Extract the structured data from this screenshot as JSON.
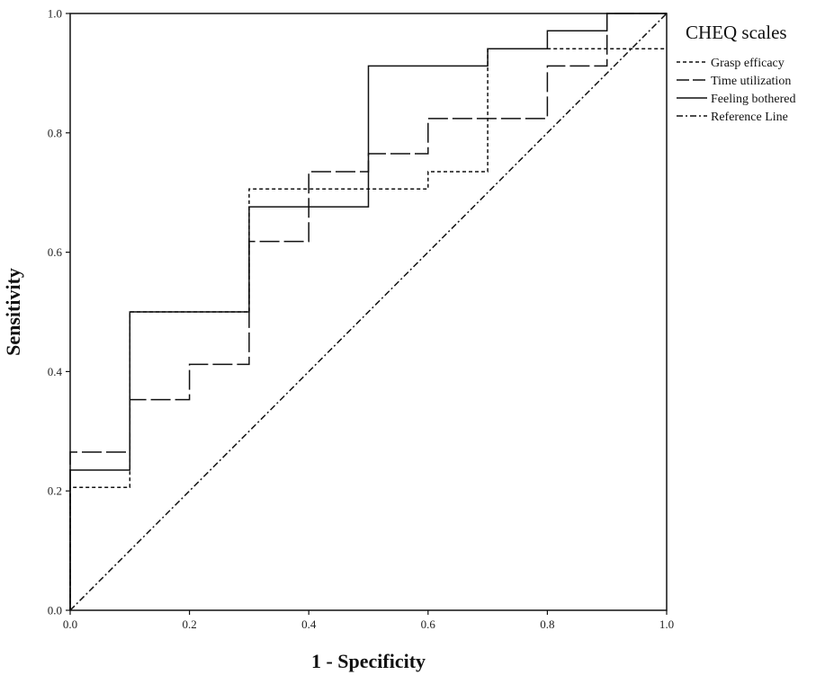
{
  "chart_data": {
    "type": "line",
    "title": "",
    "xlabel": "1 - Specificity",
    "ylabel": "Sensitivity",
    "xlim": [
      0,
      1
    ],
    "ylim": [
      0,
      1
    ],
    "x_ticks": [
      "0.0",
      "0.2",
      "0.4",
      "0.6",
      "0.8",
      "1.0"
    ],
    "y_ticks": [
      "0.0",
      "0.2",
      "0.4",
      "0.6",
      "0.8",
      "1.0"
    ],
    "grid": false,
    "legend": {
      "title": "CHEQ scales",
      "placement": "right-top"
    },
    "series": [
      {
        "name": "Grasp efficacy",
        "style": "short-dash",
        "x": [
          0,
          0,
          0.1,
          0.1,
          0.3,
          0.3,
          0.6,
          0.6,
          0.7,
          0.7,
          0.8,
          0.8,
          0.9,
          0.9,
          1.0
        ],
        "y": [
          0,
          0.206,
          0.206,
          0.5,
          0.5,
          0.706,
          0.706,
          0.735,
          0.735,
          0.941,
          0.941,
          0.941,
          0.941,
          0.941,
          0.941
        ]
      },
      {
        "name": "Time utilization",
        "style": "long-dash",
        "x": [
          0,
          0,
          0.1,
          0.1,
          0.2,
          0.2,
          0.3,
          0.3,
          0.4,
          0.4,
          0.5,
          0.5,
          0.6,
          0.6,
          0.8,
          0.8,
          0.9,
          0.9,
          1.0
        ],
        "y": [
          0,
          0.265,
          0.265,
          0.353,
          0.353,
          0.412,
          0.412,
          0.618,
          0.618,
          0.735,
          0.735,
          0.765,
          0.765,
          0.824,
          0.824,
          0.912,
          0.912,
          1.0,
          1.0
        ]
      },
      {
        "name": "Feeling bothered",
        "style": "solid",
        "x": [
          0,
          0,
          0.1,
          0.1,
          0.3,
          0.3,
          0.5,
          0.5,
          0.7,
          0.7,
          0.8,
          0.8,
          0.9,
          0.9,
          1.0
        ],
        "y": [
          0,
          0.235,
          0.235,
          0.5,
          0.5,
          0.676,
          0.676,
          0.912,
          0.912,
          0.941,
          0.941,
          0.971,
          0.971,
          1.0,
          1.0
        ]
      },
      {
        "name": "Reference Line",
        "style": "dash-dot",
        "x": [
          0,
          1
        ],
        "y": [
          0,
          1
        ]
      }
    ]
  }
}
